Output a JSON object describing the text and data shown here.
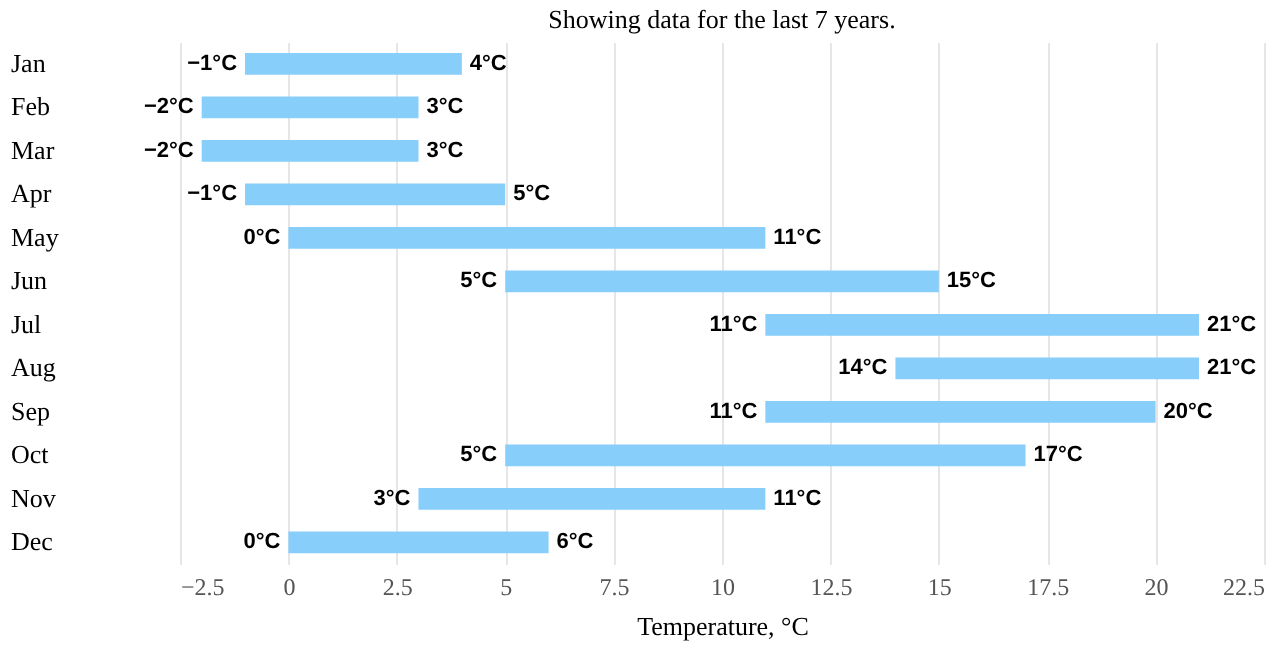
{
  "chart_data": {
    "type": "bar",
    "orientation": "horizontal",
    "title": "Showing data for the last 7 years.",
    "xlabel": "Temperature, °C",
    "categories": [
      "Jan",
      "Feb",
      "Mar",
      "Apr",
      "May",
      "Jun",
      "Jul",
      "Aug",
      "Sep",
      "Oct",
      "Nov",
      "Dec"
    ],
    "base": [
      -1,
      -2,
      -2,
      -1,
      0,
      5,
      11,
      14,
      11,
      5,
      3,
      0
    ],
    "values": [
      5,
      5,
      5,
      6,
      11,
      10,
      10,
      7,
      9,
      12,
      8,
      6
    ],
    "color": "#87cefa",
    "xlim": [
      -2.5,
      22.5
    ],
    "xticks": [
      -2.5,
      0,
      2.5,
      5,
      7.5,
      10,
      12.5,
      15,
      17.5,
      20,
      22.5
    ],
    "grid": "x",
    "annotations": [
      {
        "text": "−1°C",
        "x": -1,
        "y": "Jan"
      },
      {
        "text": "4°C",
        "x": 4,
        "y": "Jan"
      },
      {
        "text": "−2°C",
        "x": -2,
        "y": "Feb"
      },
      {
        "text": "3°C",
        "x": 3,
        "y": "Feb"
      },
      {
        "text": "−2°C",
        "x": -2,
        "y": "Mar"
      },
      {
        "text": "3°C",
        "x": 3,
        "y": "Mar"
      },
      {
        "text": "−1°C",
        "x": -1,
        "y": "Apr"
      },
      {
        "text": "5°C",
        "x": 5,
        "y": "Apr"
      },
      {
        "text": "0°C",
        "x": 0,
        "y": "May"
      },
      {
        "text": "11°C",
        "x": 11,
        "y": "May"
      },
      {
        "text": "5°C",
        "x": 5,
        "y": "Jun"
      },
      {
        "text": "15°C",
        "x": 15,
        "y": "Jun"
      },
      {
        "text": "11°C",
        "x": 11,
        "y": "Jul"
      },
      {
        "text": "21°C",
        "x": 21,
        "y": "Jul"
      },
      {
        "text": "14°C",
        "x": 14,
        "y": "Aug"
      },
      {
        "text": "21°C",
        "x": 21,
        "y": "Aug"
      },
      {
        "text": "11°C",
        "x": 11,
        "y": "Sep"
      },
      {
        "text": "20°C",
        "x": 20,
        "y": "Sep"
      },
      {
        "text": "5°C",
        "x": 5,
        "y": "Oct"
      },
      {
        "text": "17°C",
        "x": 17,
        "y": "Oct"
      },
      {
        "text": "3°C",
        "x": 3,
        "y": "Nov"
      },
      {
        "text": "11°C",
        "x": 11,
        "y": "Nov"
      },
      {
        "text": "0°C",
        "x": 0,
        "y": "Dec"
      },
      {
        "text": "6°C",
        "x": 6,
        "y": "Dec"
      }
    ]
  }
}
